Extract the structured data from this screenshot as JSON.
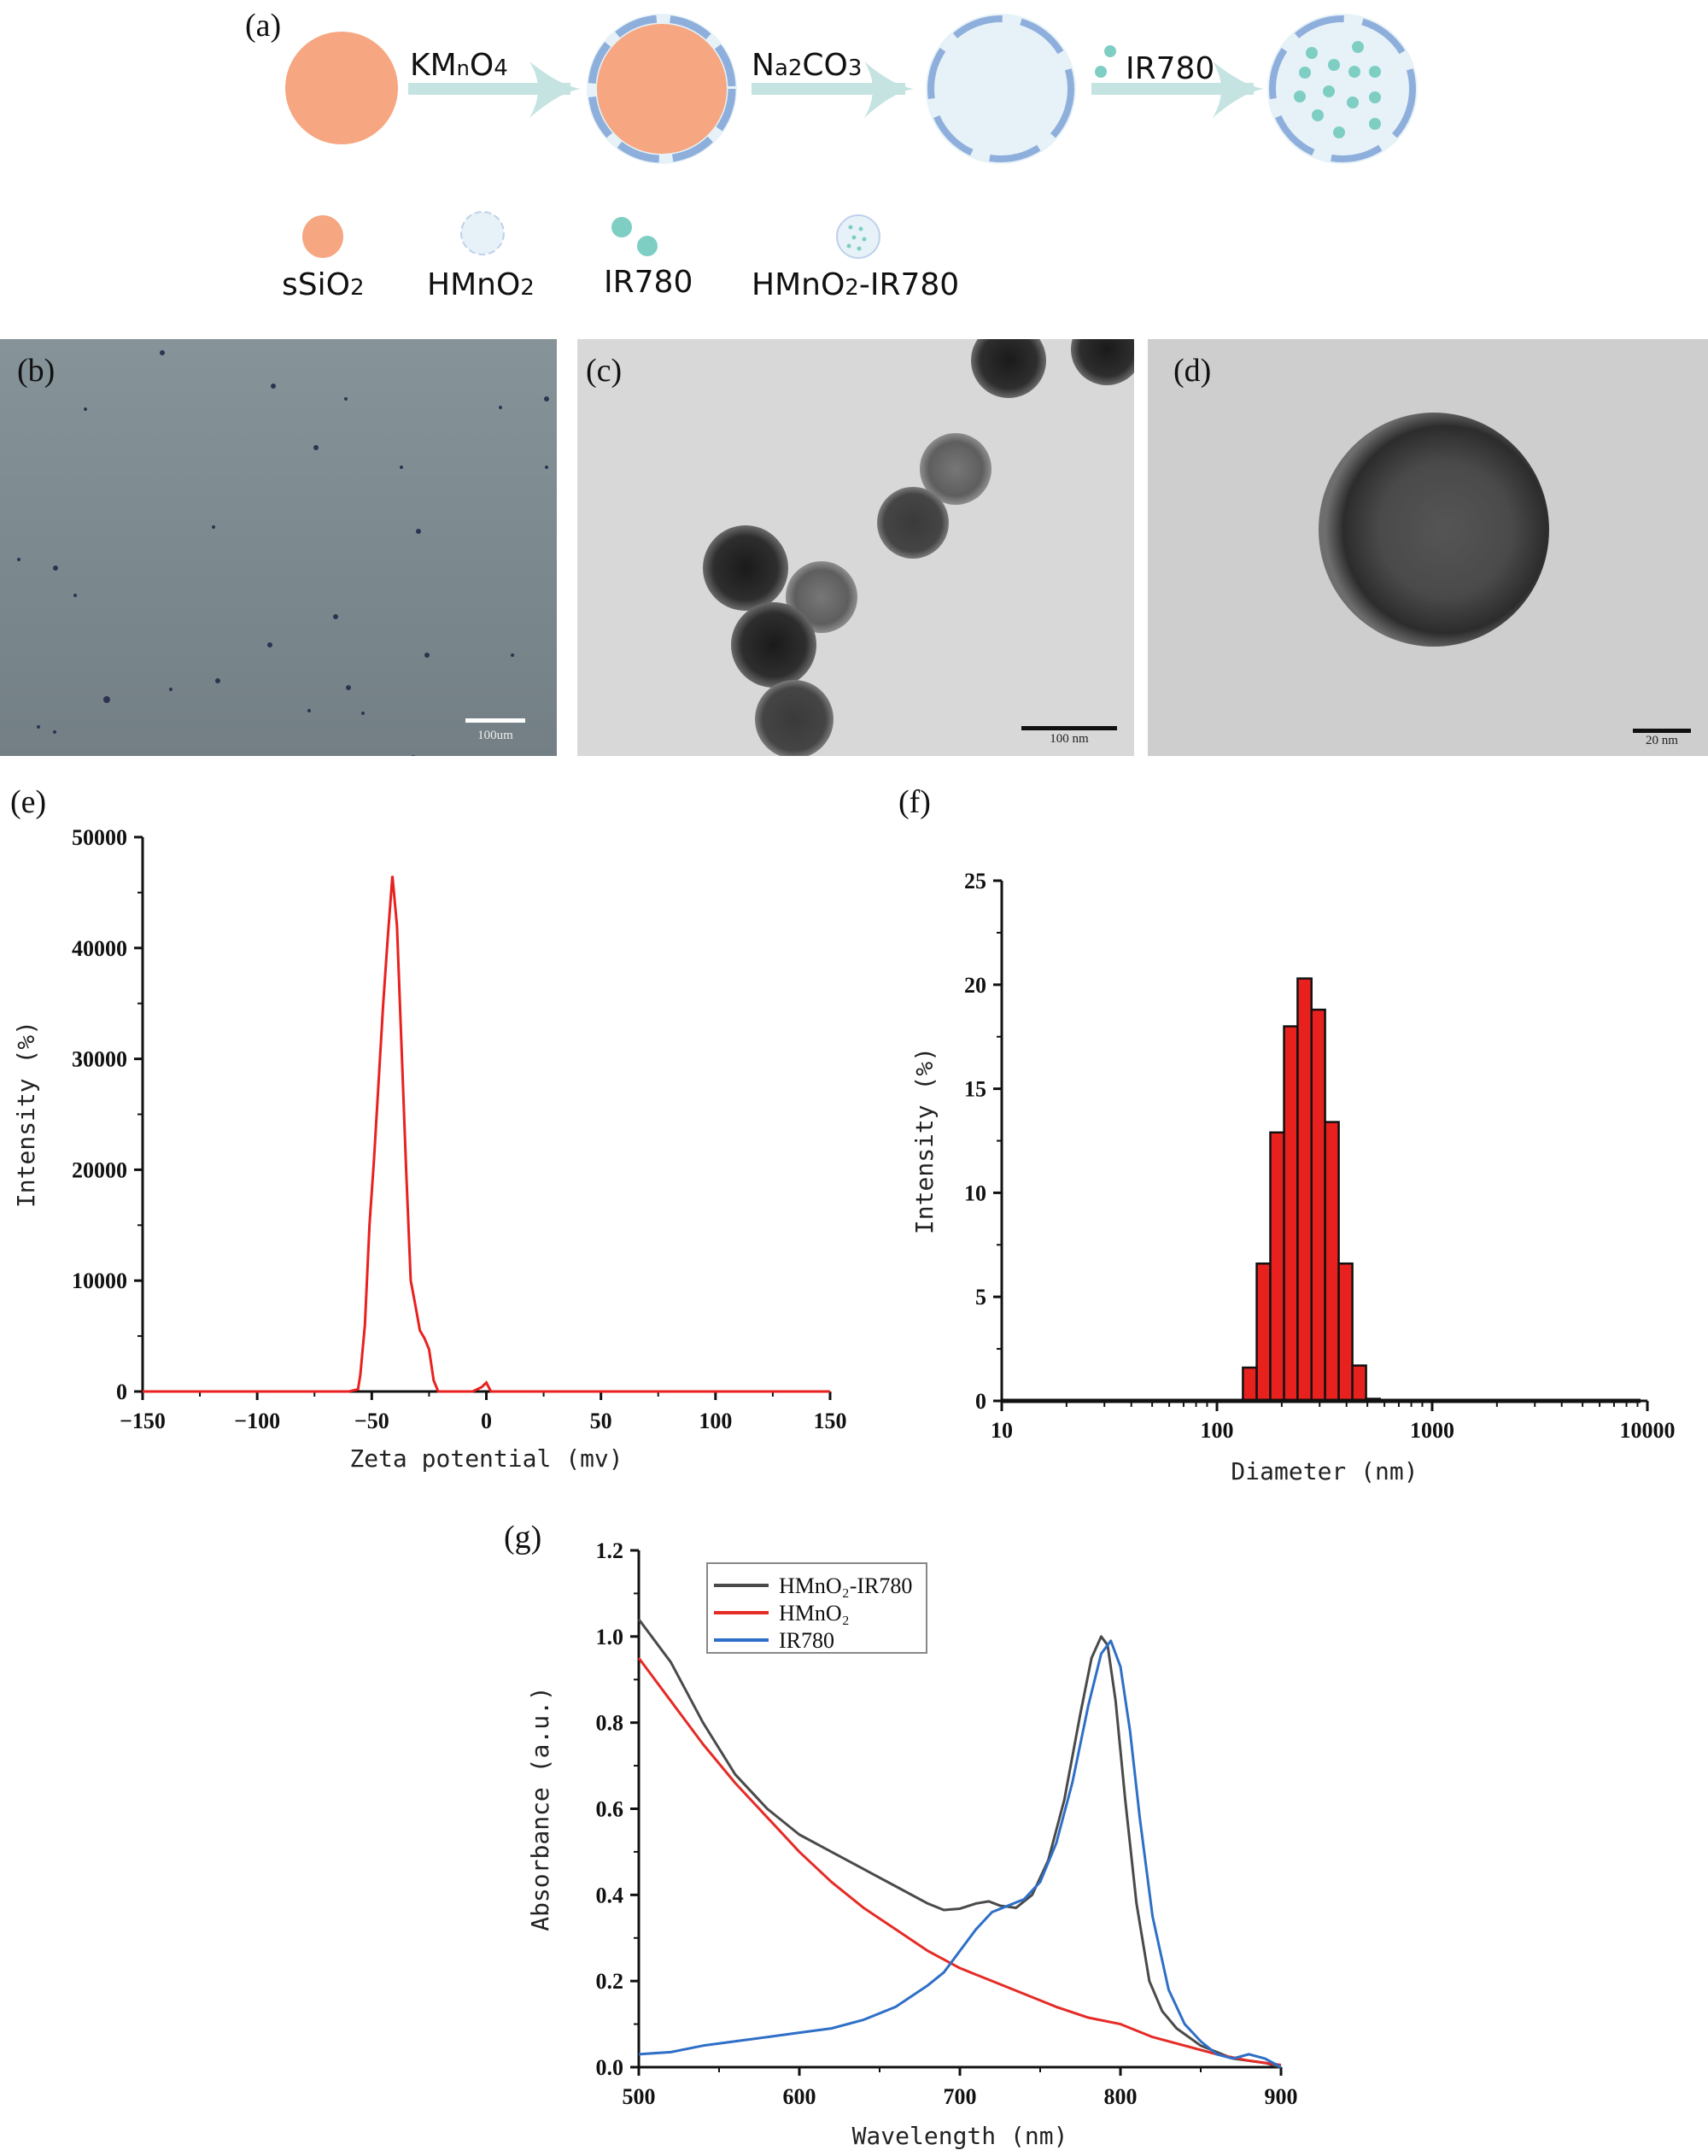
{
  "figure": {
    "panels": {
      "a": {
        "label": "(a)",
        "steps": [
          {
            "reagent": "KMnO4",
            "reagent_main": "KM",
            "reagent_sub1": "n",
            "reagent_mid": "O",
            "reagent_sub2": "4"
          },
          {
            "reagent": "Na2CO3",
            "reagent_main": "N",
            "reagent_sub1": "a2",
            "reagent_mid": "CO",
            "reagent_sub2": "3"
          },
          {
            "reagent": "IR780"
          }
        ],
        "legend": [
          {
            "name": "sSiO2",
            "text": "sSiO",
            "sub": "2"
          },
          {
            "name": "HMnO2",
            "text": "HMnO",
            "sub": "2"
          },
          {
            "name": "IR780",
            "text": "IR780",
            "sub": ""
          },
          {
            "name": "HMnO2-IR780",
            "text": "HMnO",
            "sub": "2",
            "suffix": "-IR780"
          }
        ],
        "colors": {
          "core": "#F6A680",
          "shell": "#E6F2F7",
          "shell_segment": "#8EAEDC",
          "arrow": "#C5E4E1",
          "dye": "#7ECEC4"
        }
      },
      "b": {
        "label": "(b)",
        "scale_bar": "100um",
        "background": "#7E8C92"
      },
      "c": {
        "label": "(c)",
        "scale_bar": "100 nm",
        "background": "#D9D9D9"
      },
      "d": {
        "label": "(d)",
        "scale_bar": "20 nm",
        "background": "#CFCFCF"
      },
      "e": {
        "label": "(e)"
      },
      "f": {
        "label": "(f)"
      },
      "g": {
        "label": "(g)"
      }
    }
  },
  "chart_data": [
    {
      "id": "e",
      "type": "line",
      "title": "",
      "xlabel": "Zeta potential (mv)",
      "ylabel": "Intensity (%)",
      "xlim": [
        -150,
        150
      ],
      "ylim": [
        0,
        50000
      ],
      "xticks": [
        -150,
        -100,
        -50,
        0,
        50,
        100,
        150
      ],
      "yticks": [
        0,
        10000,
        20000,
        30000,
        40000,
        50000
      ],
      "grid": false,
      "series": [
        {
          "name": "Zeta potential",
          "color": "#E8211F",
          "x": [
            -150,
            -60,
            -56,
            -55,
            -53,
            -51,
            -49,
            -47,
            -45,
            -43,
            -41,
            -39,
            -37,
            -35,
            -33,
            -31,
            -29,
            -27,
            -25,
            -23,
            -21,
            -18,
            -6,
            -2,
            0,
            2,
            150
          ],
          "y": [
            0,
            0,
            200,
            1500,
            6000,
            15000,
            21000,
            28000,
            35000,
            41000,
            46500,
            42000,
            31000,
            20000,
            10000,
            7800,
            5500,
            4800,
            3800,
            1000,
            0,
            0,
            0,
            400,
            800,
            0,
            0
          ]
        }
      ]
    },
    {
      "id": "f",
      "type": "bar",
      "title": "",
      "xlabel": "Diameter (nm)",
      "ylabel": "Intensity (%)",
      "xscale": "log",
      "xlim": [
        10,
        10000
      ],
      "ylim": [
        0,
        25
      ],
      "xticks": [
        10,
        100,
        1000,
        10000
      ],
      "yticks": [
        0,
        5,
        10,
        15,
        20,
        25
      ],
      "grid": false,
      "bar_color": "#E8211F",
      "categories": [
        142,
        164,
        190,
        220,
        255,
        295,
        342,
        396,
        459,
        531
      ],
      "bin_edges": [
        132,
        153,
        177,
        205,
        237,
        275,
        318,
        368,
        426,
        493,
        571
      ],
      "values": [
        1.6,
        6.6,
        12.9,
        18.0,
        20.3,
        18.8,
        13.4,
        6.6,
        1.7,
        0.1
      ]
    },
    {
      "id": "g",
      "type": "line",
      "title": "",
      "xlabel": "Wavelength (nm)",
      "ylabel": "Absorbance (a.u.)",
      "xlim": [
        500,
        900
      ],
      "ylim": [
        0.0,
        1.2
      ],
      "xticks": [
        500,
        600,
        700,
        800,
        900
      ],
      "yticks": [
        "0.0",
        "0.2",
        "0.4",
        "0.6",
        "0.8",
        "1.0",
        "1.2"
      ],
      "grid": false,
      "legend_position": "upper-left",
      "series": [
        {
          "name": "HMnO₂-IR780",
          "color": "#4A4A4A",
          "x": [
            500,
            520,
            540,
            560,
            580,
            600,
            620,
            640,
            660,
            680,
            690,
            700,
            710,
            718,
            725,
            735,
            745,
            755,
            765,
            775,
            782,
            788,
            792,
            797,
            803,
            810,
            818,
            826,
            835,
            850,
            870,
            890,
            900
          ],
          "y": [
            1.04,
            0.94,
            0.8,
            0.68,
            0.6,
            0.54,
            0.5,
            0.46,
            0.42,
            0.38,
            0.365,
            0.368,
            0.38,
            0.385,
            0.375,
            0.37,
            0.4,
            0.48,
            0.62,
            0.82,
            0.95,
            1.0,
            0.98,
            0.85,
            0.62,
            0.38,
            0.2,
            0.13,
            0.09,
            0.05,
            0.02,
            0.01,
            0.0
          ]
        },
        {
          "name": "HMnO₂",
          "color": "#E52B26",
          "x": [
            500,
            520,
            540,
            560,
            580,
            600,
            620,
            640,
            660,
            680,
            700,
            720,
            740,
            760,
            780,
            800,
            820,
            840,
            860,
            880,
            900
          ],
          "y": [
            0.95,
            0.85,
            0.75,
            0.66,
            0.58,
            0.5,
            0.43,
            0.37,
            0.32,
            0.27,
            0.23,
            0.2,
            0.17,
            0.14,
            0.115,
            0.1,
            0.07,
            0.05,
            0.03,
            0.015,
            0.005
          ]
        },
        {
          "name": "IR780",
          "color": "#2E6FC7",
          "x": [
            500,
            520,
            540,
            560,
            580,
            600,
            620,
            640,
            660,
            680,
            690,
            700,
            710,
            720,
            730,
            740,
            750,
            760,
            770,
            780,
            788,
            794,
            800,
            806,
            812,
            820,
            830,
            840,
            850,
            860,
            870,
            880,
            890,
            900
          ],
          "y": [
            0.03,
            0.035,
            0.05,
            0.06,
            0.07,
            0.08,
            0.09,
            0.11,
            0.14,
            0.19,
            0.22,
            0.27,
            0.32,
            0.36,
            0.375,
            0.39,
            0.43,
            0.52,
            0.66,
            0.84,
            0.96,
            0.99,
            0.93,
            0.78,
            0.58,
            0.35,
            0.18,
            0.1,
            0.06,
            0.03,
            0.02,
            0.03,
            0.02,
            0.0
          ]
        }
      ]
    }
  ]
}
